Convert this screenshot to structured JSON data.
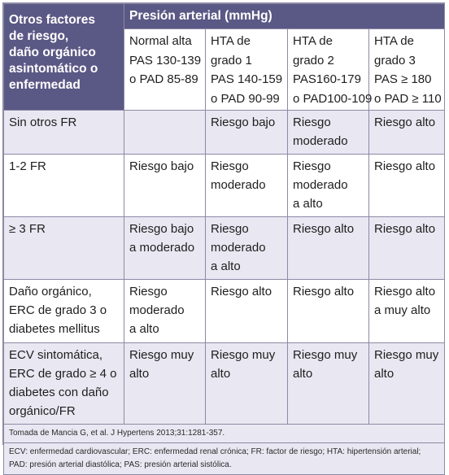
{
  "header": {
    "corner_lines": [
      "Otros factores",
      "de riesgo,",
      "daño orgánico",
      "asintomático o",
      "enfermedad"
    ],
    "presion_title": "Presión arterial (mmHg)",
    "subcolumns": [
      {
        "lines": [
          "Normal alta",
          "PAS 130-139",
          "o PAD 85-89"
        ]
      },
      {
        "lines": [
          "HTA de",
          "grado 1",
          "PAS 140-159",
          "o PAD 90-99"
        ]
      },
      {
        "lines": [
          "HTA de",
          "grado 2",
          "PAS160-179",
          "o PAD100-109"
        ]
      },
      {
        "lines": [
          "HTA de",
          "grado 3",
          "PAS ≥ 180",
          "o PAD ≥ 110"
        ]
      }
    ]
  },
  "rows": [
    {
      "label": [
        "Sin otros FR"
      ],
      "cells": [
        [],
        [
          "Riesgo bajo"
        ],
        [
          "Riesgo",
          "moderado"
        ],
        [
          "Riesgo alto"
        ]
      ]
    },
    {
      "label": [
        "1-2 FR"
      ],
      "cells": [
        [
          "Riesgo bajo"
        ],
        [
          "Riesgo",
          "moderado"
        ],
        [
          "Riesgo",
          "moderado",
          "a alto"
        ],
        [
          "Riesgo alto"
        ]
      ]
    },
    {
      "label": [
        "≥ 3 FR"
      ],
      "cells": [
        [
          "Riesgo bajo",
          "a moderado"
        ],
        [
          "Riesgo",
          "moderado",
          "a alto"
        ],
        [
          "Riesgo alto"
        ],
        [
          "Riesgo alto"
        ]
      ]
    },
    {
      "label": [
        "Daño orgánico,",
        "ERC de grado 3 o",
        "diabetes mellitus"
      ],
      "cells": [
        [
          "Riesgo",
          "moderado",
          "a alto"
        ],
        [
          "Riesgo alto"
        ],
        [
          "Riesgo alto"
        ],
        [
          "Riesgo alto",
          "a muy alto"
        ]
      ]
    },
    {
      "label": [
        "ECV sintomática,",
        "ERC de grado ≥ 4 o",
        "diabetes con daño",
        "orgánico/FR"
      ],
      "cells": [
        [
          "Riesgo muy",
          "alto"
        ],
        [
          "Riesgo muy",
          "alto"
        ],
        [
          "Riesgo muy",
          "alto"
        ],
        [
          "Riesgo muy",
          "alto"
        ]
      ]
    }
  ],
  "footer": {
    "source": "Tomada de Mancia G, et al. J Hypertens 2013;31:1281-357.",
    "abbreviations": "ECV: enfermedad cardiovascular; ERC: enfermedad renal crónica; FR: factor de riesgo; HTA: hipertensión arterial; PAD: presión arterial diastólica; PAS: presión arterial sistólica."
  }
}
